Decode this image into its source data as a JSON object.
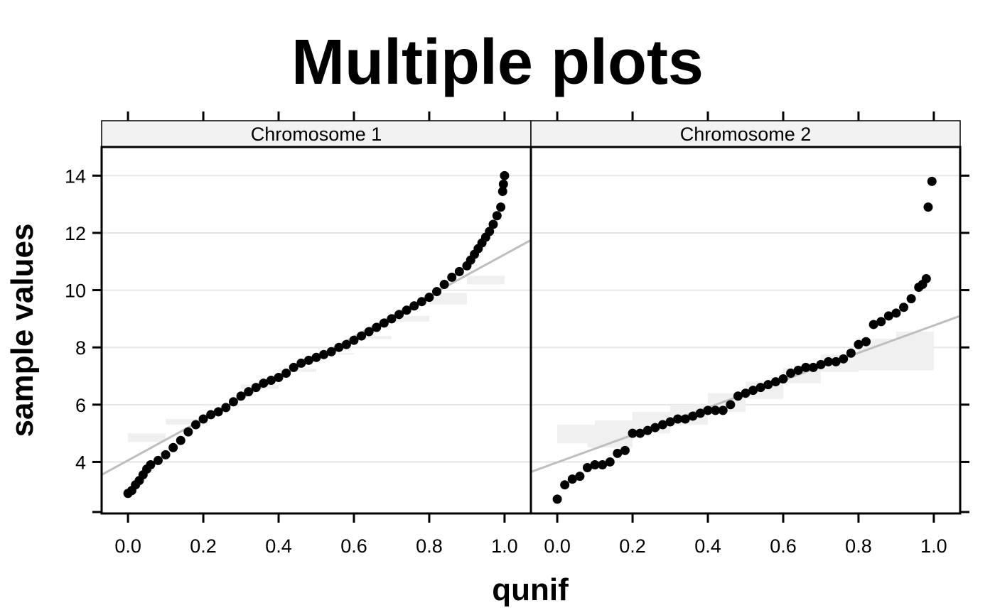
{
  "chart_data": {
    "type": "scatter",
    "title": "Multiple plots",
    "xlabel": "qunif",
    "ylabel": "sample values",
    "xlim": [
      -0.07,
      1.07
    ],
    "ylim": [
      2.2,
      15.0
    ],
    "x_ticks": [
      0.0,
      0.2,
      0.4,
      0.6,
      0.8,
      1.0
    ],
    "x_tick_labels": [
      "0.0",
      "0.2",
      "0.4",
      "0.6",
      "0.8",
      "1.0"
    ],
    "y_ticks": [
      4,
      6,
      8,
      10,
      12,
      14
    ],
    "y_tick_labels": [
      "4",
      "6",
      "8",
      "10",
      "12",
      "14"
    ],
    "grid": "horizontal",
    "colors": {
      "points": "#000000",
      "reference_line": "#bebebe",
      "band": "#f0f0f0",
      "grid": "#e6e6e6",
      "strip": "#f2f2f2"
    },
    "panels": [
      {
        "strip": "Chromosome 1",
        "reference_line": [
          [
            -0.07,
            3.55
          ],
          [
            1.07,
            11.75
          ]
        ],
        "band_upper": [
          [
            0.0,
            5.0
          ],
          [
            0.1,
            5.5
          ],
          [
            0.2,
            6.0
          ],
          [
            0.3,
            6.7
          ],
          [
            0.4,
            7.25
          ],
          [
            0.5,
            7.75
          ],
          [
            0.6,
            8.3
          ],
          [
            0.7,
            8.9
          ],
          [
            0.8,
            9.5
          ],
          [
            0.9,
            10.5
          ],
          [
            1.0,
            11.2
          ]
        ],
        "band_lower": [
          [
            0.0,
            4.1
          ],
          [
            0.1,
            4.7
          ],
          [
            0.2,
            5.3
          ],
          [
            0.3,
            5.95
          ],
          [
            0.4,
            6.55
          ],
          [
            0.5,
            7.15
          ],
          [
            0.6,
            7.8
          ],
          [
            0.7,
            8.4
          ],
          [
            0.8,
            9.1
          ],
          [
            0.9,
            9.9
          ],
          [
            1.0,
            10.2
          ]
        ],
        "points": [
          [
            0.0,
            2.9
          ],
          [
            0.01,
            3.0
          ],
          [
            0.02,
            3.2
          ],
          [
            0.03,
            3.35
          ],
          [
            0.04,
            3.55
          ],
          [
            0.05,
            3.75
          ],
          [
            0.06,
            3.9
          ],
          [
            0.08,
            4.05
          ],
          [
            0.1,
            4.25
          ],
          [
            0.12,
            4.5
          ],
          [
            0.14,
            4.75
          ],
          [
            0.16,
            5.05
          ],
          [
            0.18,
            5.3
          ],
          [
            0.2,
            5.5
          ],
          [
            0.22,
            5.65
          ],
          [
            0.24,
            5.75
          ],
          [
            0.26,
            5.9
          ],
          [
            0.28,
            6.1
          ],
          [
            0.3,
            6.3
          ],
          [
            0.32,
            6.45
          ],
          [
            0.34,
            6.6
          ],
          [
            0.36,
            6.75
          ],
          [
            0.38,
            6.85
          ],
          [
            0.4,
            6.95
          ],
          [
            0.42,
            7.1
          ],
          [
            0.44,
            7.3
          ],
          [
            0.46,
            7.45
          ],
          [
            0.48,
            7.55
          ],
          [
            0.5,
            7.65
          ],
          [
            0.52,
            7.75
          ],
          [
            0.54,
            7.85
          ],
          [
            0.56,
            8.0
          ],
          [
            0.58,
            8.1
          ],
          [
            0.6,
            8.25
          ],
          [
            0.62,
            8.4
          ],
          [
            0.64,
            8.55
          ],
          [
            0.66,
            8.7
          ],
          [
            0.68,
            8.85
          ],
          [
            0.7,
            9.0
          ],
          [
            0.72,
            9.15
          ],
          [
            0.74,
            9.3
          ],
          [
            0.76,
            9.45
          ],
          [
            0.78,
            9.6
          ],
          [
            0.8,
            9.75
          ],
          [
            0.82,
            9.95
          ],
          [
            0.84,
            10.2
          ],
          [
            0.86,
            10.45
          ],
          [
            0.88,
            10.65
          ],
          [
            0.9,
            10.85
          ],
          [
            0.91,
            11.05
          ],
          [
            0.92,
            11.25
          ],
          [
            0.93,
            11.45
          ],
          [
            0.94,
            11.65
          ],
          [
            0.95,
            11.85
          ],
          [
            0.96,
            12.05
          ],
          [
            0.97,
            12.3
          ],
          [
            0.98,
            12.6
          ],
          [
            0.99,
            12.9
          ],
          [
            0.995,
            13.45
          ],
          [
            0.997,
            13.7
          ],
          [
            1.0,
            14.0
          ]
        ]
      },
      {
        "strip": "Chromosome 2",
        "reference_line": [
          [
            -0.07,
            3.65
          ],
          [
            1.07,
            9.1
          ]
        ],
        "band_upper": [
          [
            0.0,
            5.3
          ],
          [
            0.1,
            5.45
          ],
          [
            0.2,
            5.75
          ],
          [
            0.3,
            6.0
          ],
          [
            0.4,
            6.4
          ],
          [
            0.5,
            6.8
          ],
          [
            0.6,
            7.3
          ],
          [
            0.7,
            7.75
          ],
          [
            0.8,
            8.3
          ],
          [
            0.9,
            8.55
          ],
          [
            1.0,
            8.65
          ]
        ],
        "band_lower": [
          [
            0.0,
            5.3
          ],
          [
            0.08,
            4.65
          ],
          [
            0.2,
            4.5
          ],
          [
            0.3,
            5.0
          ],
          [
            0.4,
            5.3
          ],
          [
            0.5,
            5.75
          ],
          [
            0.6,
            6.2
          ],
          [
            0.7,
            6.75
          ],
          [
            0.8,
            7.15
          ],
          [
            0.9,
            7.2
          ],
          [
            1.0,
            7.2
          ]
        ],
        "points": [
          [
            0.0,
            2.7
          ],
          [
            0.02,
            3.2
          ],
          [
            0.04,
            3.4
          ],
          [
            0.06,
            3.5
          ],
          [
            0.08,
            3.8
          ],
          [
            0.1,
            3.9
          ],
          [
            0.12,
            3.9
          ],
          [
            0.14,
            4.0
          ],
          [
            0.16,
            4.3
          ],
          [
            0.18,
            4.4
          ],
          [
            0.2,
            5.0
          ],
          [
            0.22,
            5.0
          ],
          [
            0.24,
            5.1
          ],
          [
            0.26,
            5.2
          ],
          [
            0.28,
            5.3
          ],
          [
            0.3,
            5.4
          ],
          [
            0.32,
            5.5
          ],
          [
            0.34,
            5.5
          ],
          [
            0.36,
            5.6
          ],
          [
            0.38,
            5.7
          ],
          [
            0.4,
            5.8
          ],
          [
            0.42,
            5.8
          ],
          [
            0.44,
            5.8
          ],
          [
            0.46,
            6.0
          ],
          [
            0.48,
            6.3
          ],
          [
            0.5,
            6.4
          ],
          [
            0.52,
            6.5
          ],
          [
            0.54,
            6.6
          ],
          [
            0.56,
            6.7
          ],
          [
            0.58,
            6.8
          ],
          [
            0.6,
            6.9
          ],
          [
            0.62,
            7.1
          ],
          [
            0.64,
            7.2
          ],
          [
            0.66,
            7.3
          ],
          [
            0.68,
            7.3
          ],
          [
            0.7,
            7.4
          ],
          [
            0.72,
            7.5
          ],
          [
            0.74,
            7.5
          ],
          [
            0.76,
            7.6
          ],
          [
            0.78,
            7.8
          ],
          [
            0.8,
            8.1
          ],
          [
            0.82,
            8.2
          ],
          [
            0.84,
            8.8
          ],
          [
            0.86,
            8.9
          ],
          [
            0.88,
            9.1
          ],
          [
            0.9,
            9.2
          ],
          [
            0.92,
            9.4
          ],
          [
            0.94,
            9.7
          ],
          [
            0.96,
            10.1
          ],
          [
            0.97,
            10.2
          ],
          [
            0.98,
            10.4
          ],
          [
            0.985,
            12.9
          ],
          [
            0.995,
            13.8
          ]
        ]
      }
    ]
  }
}
